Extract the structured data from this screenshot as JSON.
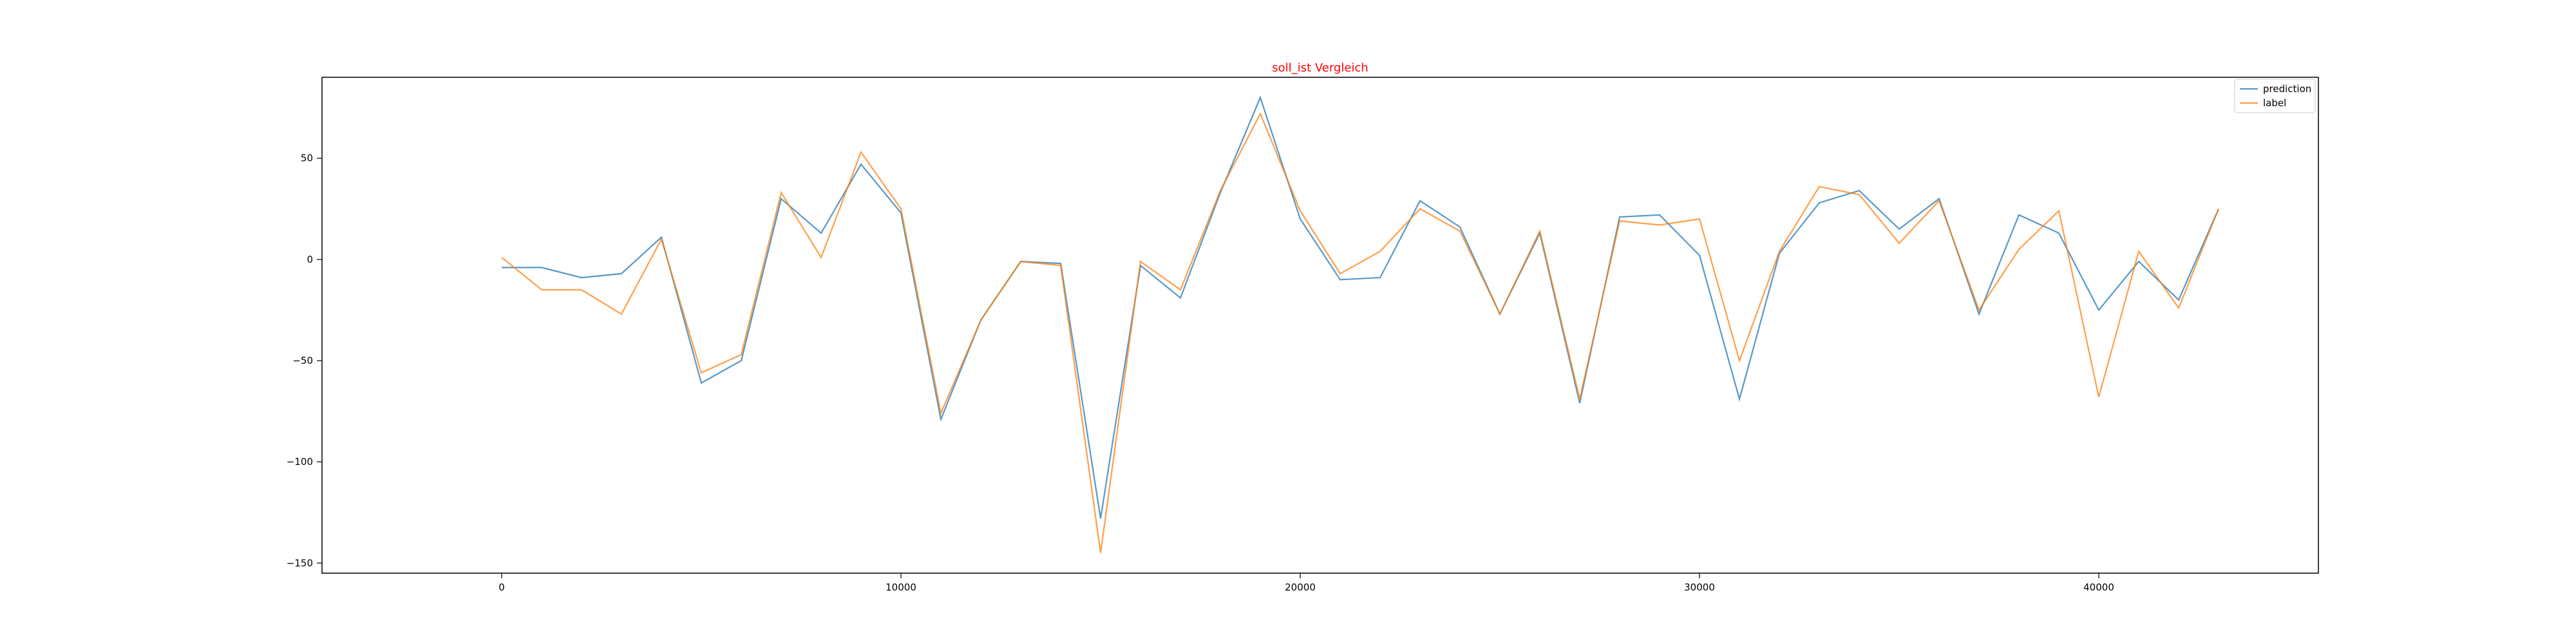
{
  "chart_data": {
    "type": "line",
    "title": "soll_ist Vergleich",
    "title_color": "#ff0000",
    "xlabel": "",
    "ylabel": "",
    "xlim": [
      -4500,
      45500
    ],
    "ylim": [
      -155,
      90
    ],
    "xticks": [
      0,
      10000,
      20000,
      30000,
      40000
    ],
    "xtick_labels": [
      "0",
      "10000",
      "20000",
      "30000",
      "40000"
    ],
    "yticks": [
      -150,
      -100,
      -50,
      0,
      50
    ],
    "ytick_labels": [
      "−150",
      "−100",
      "−50",
      "0",
      "50"
    ],
    "grid": false,
    "legend_position": "top-right",
    "x": [
      0,
      1000,
      2000,
      3000,
      4000,
      5000,
      6000,
      7000,
      8000,
      9000,
      10000,
      11000,
      12000,
      13000,
      14000,
      15000,
      16000,
      17000,
      18000,
      19000,
      20000,
      21000,
      22000,
      23000,
      24000,
      25000,
      26000,
      27000,
      28000,
      29000,
      30000,
      31000,
      32000,
      33000,
      34000,
      35000,
      36000,
      37000,
      38000,
      39000,
      40000,
      41000,
      42000,
      43000
    ],
    "series": [
      {
        "name": "prediction",
        "color": "#1f77b4",
        "values": [
          -4,
          -4,
          -9,
          -7,
          11,
          -61,
          -50,
          30,
          13,
          47,
          23,
          -79,
          -30,
          -1,
          -2,
          -128,
          -3,
          -19,
          33,
          80,
          20,
          -10,
          -9,
          29,
          16,
          -27,
          13,
          -71,
          21,
          22,
          2,
          -69,
          3,
          28,
          34,
          15,
          30,
          -27,
          22,
          13,
          -25,
          -1,
          -20,
          25
        ]
      },
      {
        "name": "label",
        "color": "#ff7f0e",
        "values": [
          1,
          -15,
          -15,
          -27,
          10,
          -56,
          -47,
          33,
          1,
          53,
          25,
          -76,
          -30,
          -1,
          -3,
          -145,
          -1,
          -15,
          34,
          72,
          24,
          -7,
          4,
          25,
          14,
          -27,
          14,
          -69,
          19,
          17,
          20,
          -50,
          4,
          36,
          32,
          8,
          29,
          -25,
          5,
          24,
          -68,
          4,
          -24,
          25
        ]
      }
    ]
  }
}
